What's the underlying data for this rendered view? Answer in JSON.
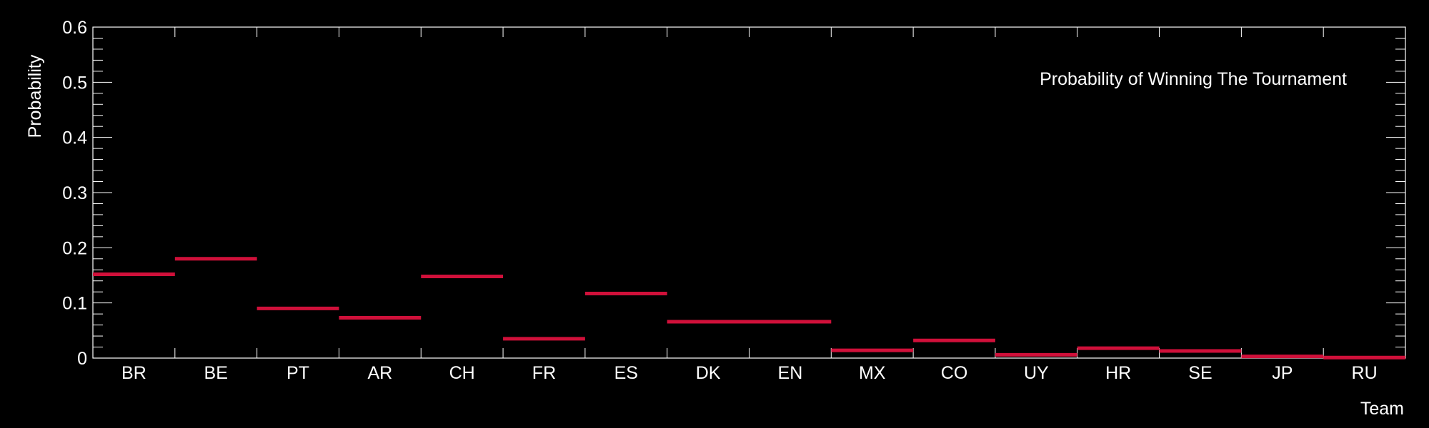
{
  "chart_data": {
    "type": "bar",
    "title": "Probability of Winning The Tournament",
    "xlabel": "Team",
    "ylabel": "Probability",
    "ylim": [
      0,
      0.6
    ],
    "yticks": [
      "0",
      "0.1",
      "0.2",
      "0.3",
      "0.4",
      "0.5",
      "0.6"
    ],
    "categories": [
      "BR",
      "BE",
      "PT",
      "AR",
      "CH",
      "FR",
      "ES",
      "DK",
      "EN",
      "MX",
      "CO",
      "UY",
      "HR",
      "SE",
      "JP",
      "RU"
    ],
    "values": [
      0.152,
      0.18,
      0.09,
      0.073,
      0.148,
      0.035,
      0.117,
      0.066,
      0.066,
      0.014,
      0.032,
      0.006,
      0.018,
      0.013,
      0.003,
      0.001
    ],
    "grid": false,
    "colors": {
      "background": "#000000",
      "axes": "#ffffff",
      "mark": "#d0103a",
      "text": "#ffffff"
    }
  }
}
